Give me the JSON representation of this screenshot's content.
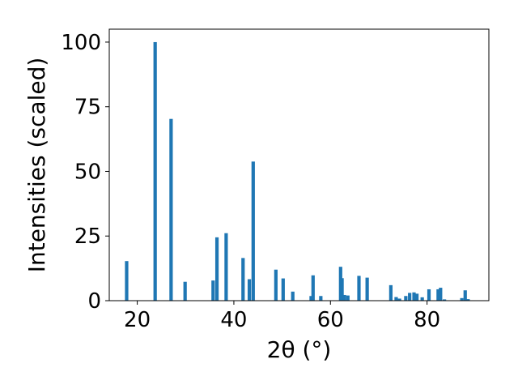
{
  "chart_data": {
    "type": "bar",
    "title": "",
    "xlabel": "2θ (°)",
    "ylabel": "Intensities (scaled)",
    "xlim": [
      14.2,
      92.8
    ],
    "ylim": [
      0,
      105
    ],
    "xticks": [
      20,
      40,
      60,
      80
    ],
    "yticks": [
      0,
      25,
      50,
      75,
      100
    ],
    "grid": false,
    "legend": "none",
    "bar_color": "#1f77b4",
    "x": [
      17.8,
      23.7,
      27.0,
      29.9,
      35.7,
      36.5,
      38.4,
      41.9,
      43.2,
      44.0,
      48.7,
      50.2,
      52.2,
      56.0,
      56.4,
      58.0,
      62.1,
      62.4,
      62.9,
      63.6,
      65.9,
      67.6,
      72.5,
      73.6,
      74.3,
      75.6,
      76.4,
      77.3,
      77.9,
      79.0,
      80.4,
      82.3,
      82.8,
      83.6,
      87.2,
      87.9,
      88.5
    ],
    "values": [
      15.3,
      100,
      70.3,
      7.3,
      7.8,
      24.5,
      26.1,
      16.5,
      8.3,
      53.8,
      12.0,
      8.6,
      3.5,
      1.8,
      9.8,
      1.8,
      13.1,
      8.7,
      2.2,
      2.0,
      9.6,
      8.9,
      6.0,
      1.4,
      0.8,
      1.8,
      3.0,
      3.2,
      2.7,
      1.3,
      4.4,
      4.4,
      5.0,
      0.5,
      1.0,
      4.0,
      0.6
    ]
  }
}
